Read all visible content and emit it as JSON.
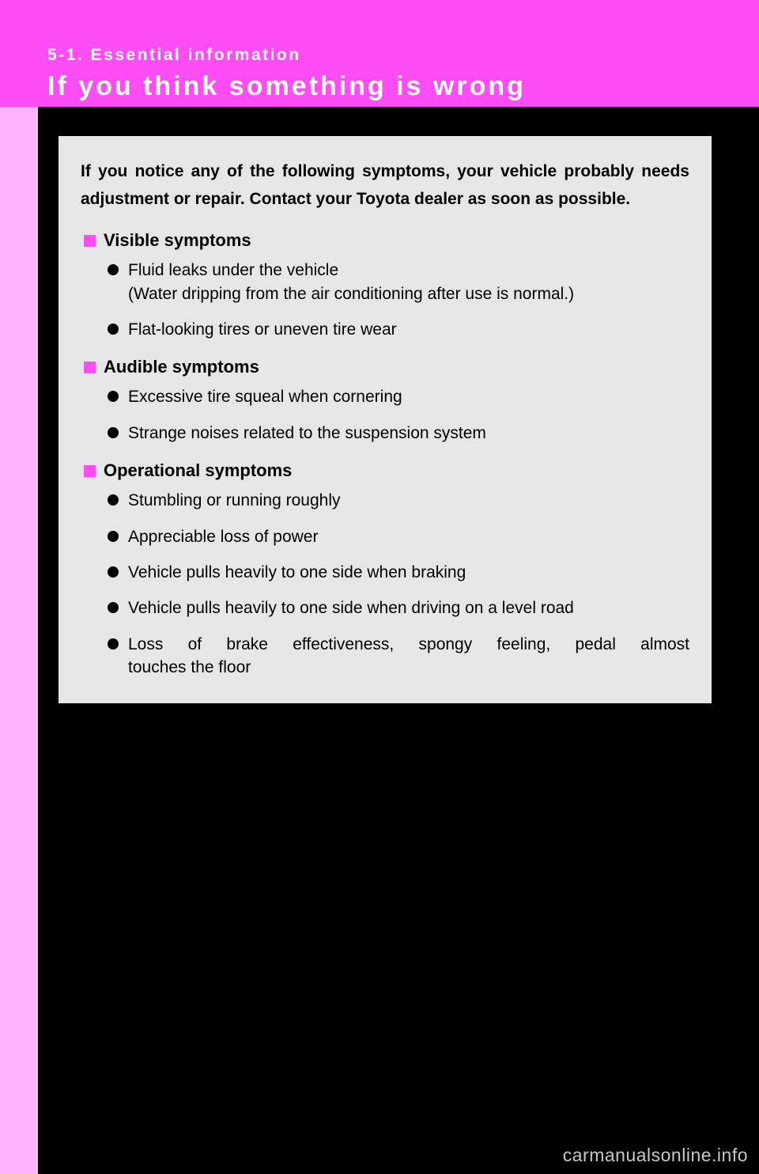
{
  "colors": {
    "header_bg": "#ff4df6",
    "stripe": "#ffb3fb",
    "box_bg": "#e6e6e6",
    "square_bullet": "#ff4df6",
    "text": "#000000",
    "watermark": "#c7c7c7",
    "page_bg": "#000000"
  },
  "header": {
    "section_label": "5-1. Essential information",
    "title": "If you think something is wrong"
  },
  "intro": "If you notice any of the following symptoms, your vehicle probably needs adjustment or repair. Contact your Toyota dealer as soon as possible.",
  "groups": [
    {
      "heading": "Visible symptoms",
      "items": [
        {
          "line1": "Fluid leaks under the vehicle",
          "line2": "(Water dripping from the air conditioning after use is normal.)"
        },
        {
          "line1": "Flat-looking tires or uneven tire wear"
        }
      ]
    },
    {
      "heading": "Audible symptoms",
      "items": [
        {
          "line1": "Excessive tire squeal when cornering"
        },
        {
          "line1": "Strange noises related to the suspension system"
        }
      ]
    },
    {
      "heading": "Operational symptoms",
      "items": [
        {
          "line1": "Stumbling or running roughly"
        },
        {
          "line1": "Appreciable loss of power"
        },
        {
          "line1": "Vehicle pulls heavily to one side when braking"
        },
        {
          "line1": "Vehicle pulls heavily to one side when driving on a level road"
        },
        {
          "line1": "Loss of brake effectiveness, spongy feeling, pedal almost",
          "line2": "touches the floor",
          "justify": true
        }
      ]
    }
  ],
  "watermark": "carmanualsonline.info"
}
